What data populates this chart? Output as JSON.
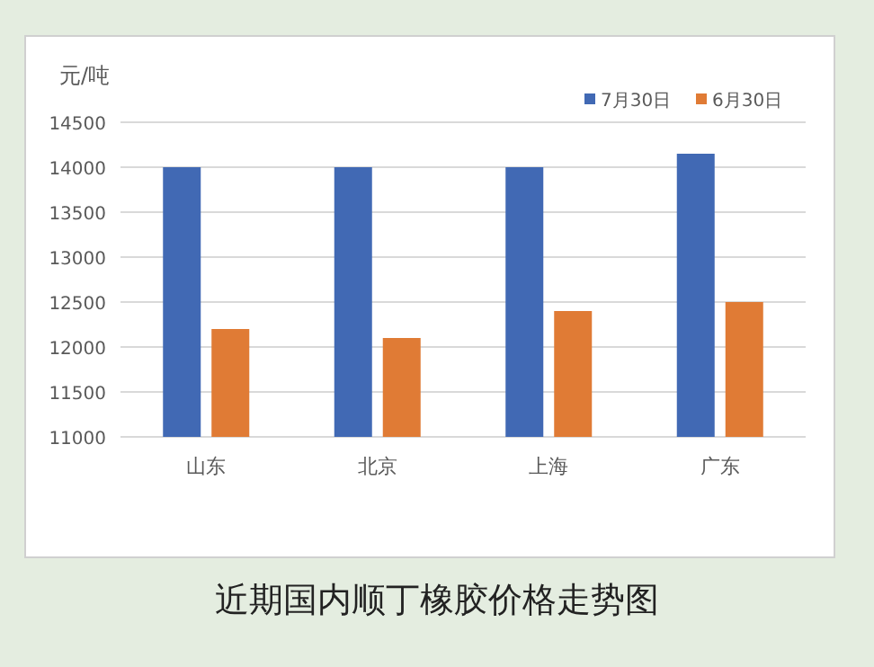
{
  "chart_data": {
    "type": "bar",
    "title": "近期国内顺丁橡胶价格走势图",
    "ylabel": "元/吨",
    "categories": [
      "山东",
      "北京",
      "上海",
      "广东"
    ],
    "series": [
      {
        "name": "7月30日",
        "color": "#4169b4",
        "values": [
          14000,
          14000,
          14000,
          14150
        ]
      },
      {
        "name": "6月30日",
        "color": "#e07b35",
        "values": [
          12200,
          12100,
          12400,
          12500
        ]
      }
    ],
    "ylim": [
      11000,
      14500
    ],
    "yticks": [
      11000,
      11500,
      12000,
      12500,
      13000,
      13500,
      14000,
      14500
    ],
    "grid": "y",
    "legend": "top right"
  }
}
